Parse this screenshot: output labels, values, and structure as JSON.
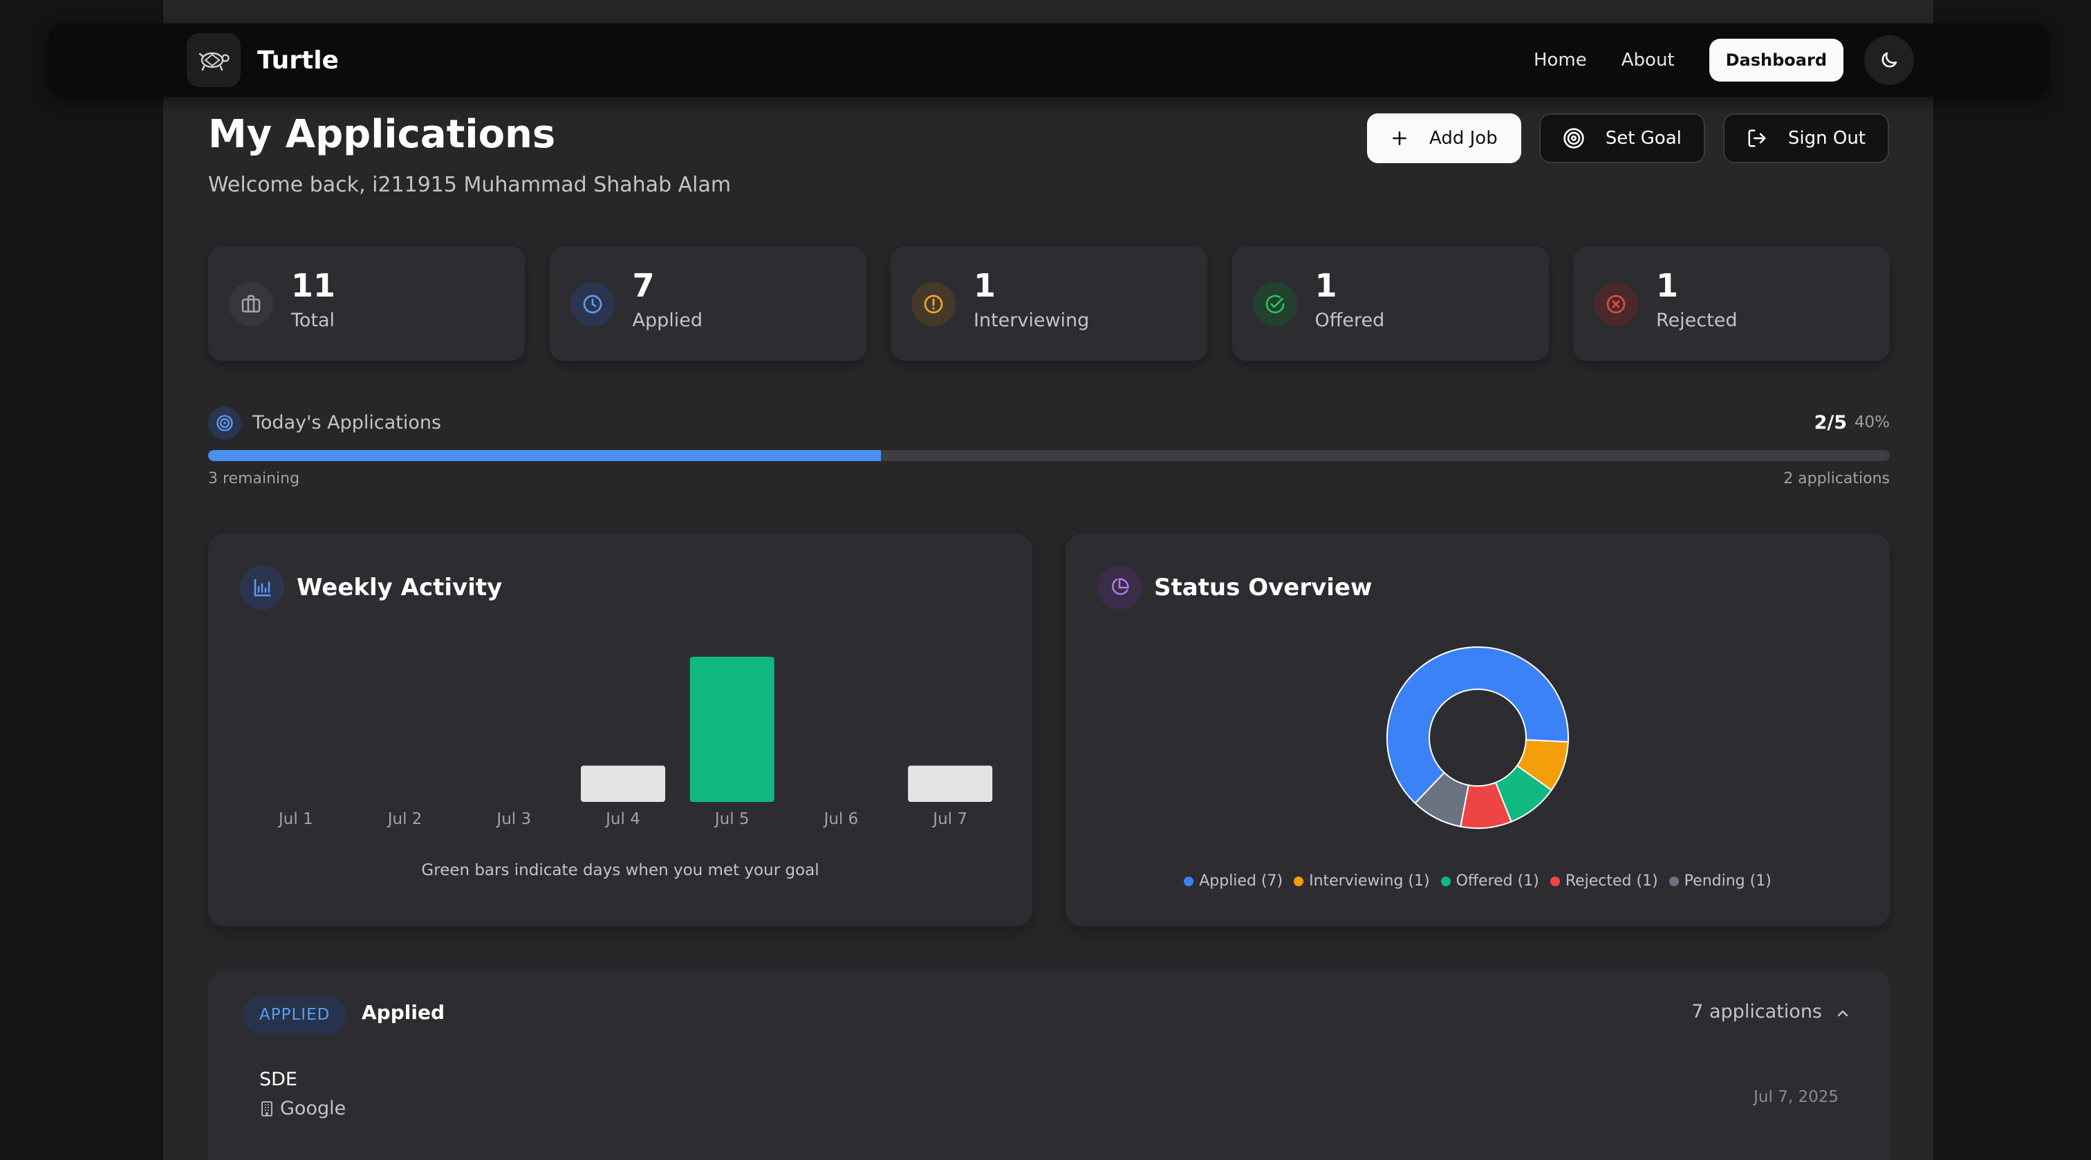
{
  "nav": {
    "brand": "Turtle",
    "links": [
      "Home",
      "About"
    ],
    "active": "Dashboard"
  },
  "header": {
    "title": "My Applications",
    "subtitle": "Welcome back, i211915 Muhammad Shahab Alam",
    "add_job": "Add Job",
    "set_goal": "Set Goal",
    "sign_out": "Sign Out"
  },
  "stats": [
    {
      "value": "11",
      "label": "Total",
      "icon": "briefcase-icon",
      "color": "#a1a1a6",
      "bg": "#3a3a3f"
    },
    {
      "value": "7",
      "label": "Applied",
      "icon": "clock-icon",
      "color": "#5b9cf5",
      "bg": "#2b3550"
    },
    {
      "value": "1",
      "label": "Interviewing",
      "icon": "alert-icon",
      "color": "#f5a623",
      "bg": "#45392a"
    },
    {
      "value": "1",
      "label": "Offered",
      "icon": "check-icon",
      "color": "#22c55e",
      "bg": "#24402f"
    },
    {
      "value": "1",
      "label": "Rejected",
      "icon": "x-icon",
      "color": "#ef4444",
      "bg": "#482a2d"
    }
  ],
  "goal": {
    "title": "Today's Applications",
    "count": "2/5",
    "percent": "40%",
    "progress": 0.4,
    "remaining": "3 remaining",
    "applications": "2 applications",
    "bar_color": "#4a90f0"
  },
  "weekly": {
    "title": "Weekly Activity",
    "note": "Green bars indicate days when you met your goal"
  },
  "status": {
    "title": "Status Overview"
  },
  "chart_data": [
    {
      "type": "bar",
      "title": "Weekly Activity",
      "categories": [
        "Jul 1",
        "Jul 2",
        "Jul 3",
        "Jul 4",
        "Jul 5",
        "Jul 6",
        "Jul 7"
      ],
      "values": [
        0,
        0,
        0,
        1,
        4,
        0,
        1
      ],
      "goal_met": [
        false,
        false,
        false,
        false,
        true,
        false,
        false
      ],
      "colors": {
        "met": "#10b981",
        "default": "#e4e4e7"
      },
      "ylim": [
        0,
        4
      ]
    },
    {
      "type": "pie",
      "title": "Status Overview",
      "donut": true,
      "slices": [
        {
          "label": "Applied",
          "value": 7,
          "color": "#3b82f6",
          "legend": "Applied (7)"
        },
        {
          "label": "Pending",
          "value": 1,
          "color": "#6b7280",
          "legend": "Pending (1)"
        },
        {
          "label": "Rejected",
          "value": 1,
          "color": "#ef4444",
          "legend": "Rejected (1)"
        },
        {
          "label": "Offered",
          "value": 1,
          "color": "#10b981",
          "legend": "Offered (1)"
        },
        {
          "label": "Interviewing",
          "value": 1,
          "color": "#f59e0b",
          "legend": "Interviewing (1)"
        }
      ],
      "legend_order": [
        "Applied",
        "Interviewing",
        "Offered",
        "Rejected",
        "Pending"
      ],
      "legend_placement": "bottom"
    }
  ],
  "applied_section": {
    "badge": "APPLIED",
    "title": "Applied",
    "count": "7 applications",
    "jobs": [
      {
        "role": "SDE",
        "company": "Google",
        "date": "Jul 7, 2025"
      }
    ]
  }
}
